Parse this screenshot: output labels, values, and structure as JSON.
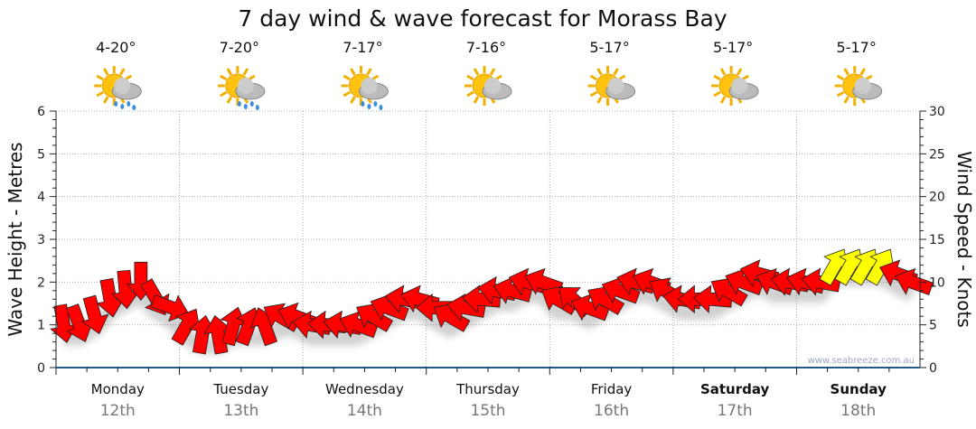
{
  "chart_data": {
    "type": "line",
    "title": "7 day wind & wave forecast for Morass Bay",
    "ylabel_left": "Wave Height - Metres",
    "ylabel_right": "Wind Speed - Knots",
    "ylim_left": [
      0,
      6
    ],
    "ylim_right": [
      0,
      30
    ],
    "yticks_left": [
      "0",
      "1",
      "2",
      "3",
      "4",
      "5",
      "6"
    ],
    "yticks_right": [
      "0",
      "5",
      "10",
      "15",
      "20",
      "25",
      "30"
    ],
    "grid": true,
    "watermark": "www.seabreeze.com.au",
    "days": [
      {
        "name": "Monday",
        "date": "12th",
        "bold": false,
        "temp": "4-20°",
        "icon": "sun-cloud-rain-icon"
      },
      {
        "name": "Tuesday",
        "date": "13th",
        "bold": false,
        "temp": "7-20°",
        "icon": "sun-cloud-rain-icon"
      },
      {
        "name": "Wednesday",
        "date": "14th",
        "bold": false,
        "temp": "7-17°",
        "icon": "sun-cloud-rain-icon"
      },
      {
        "name": "Thursday",
        "date": "15th",
        "bold": false,
        "temp": "7-16°",
        "icon": "sun-cloud-icon"
      },
      {
        "name": "Friday",
        "date": "16th",
        "bold": false,
        "temp": "5-17°",
        "icon": "sun-cloud-icon"
      },
      {
        "name": "Saturday",
        "date": "17th",
        "bold": true,
        "temp": "5-17°",
        "icon": "sun-cloud-icon"
      },
      {
        "name": "Sunday",
        "date": "18th",
        "bold": true,
        "temp": "5-17°",
        "icon": "sun-cloud-icon"
      }
    ],
    "wind_series": {
      "name": "Wind",
      "speed_knots": [
        5,
        5,
        6,
        8,
        9,
        10,
        8,
        7,
        5,
        4,
        4,
        5,
        5,
        5,
        6,
        6,
        5,
        5,
        5,
        5,
        6,
        7,
        8,
        8,
        7,
        6,
        7,
        8,
        9,
        9,
        10,
        10,
        8,
        8,
        7,
        8,
        9,
        10,
        10,
        9,
        8,
        8,
        8,
        9,
        10,
        11,
        10,
        10,
        10,
        10,
        12,
        12,
        12,
        12,
        11,
        10
      ],
      "direction_deg": [
        170,
        160,
        165,
        170,
        175,
        180,
        150,
        110,
        30,
        10,
        350,
        15,
        20,
        340,
        300,
        290,
        280,
        275,
        280,
        290,
        300,
        290,
        280,
        285,
        270,
        300,
        280,
        275,
        280,
        285,
        285,
        290,
        300,
        310,
        290,
        300,
        290,
        285,
        290,
        300,
        280,
        270,
        275,
        300,
        290,
        285,
        290,
        280,
        285,
        280,
        30,
        30,
        30,
        30,
        290,
        290
      ],
      "colors": {
        "low": "#ff0000",
        "high": "#ffff00"
      },
      "high_threshold_knots": 12
    }
  }
}
